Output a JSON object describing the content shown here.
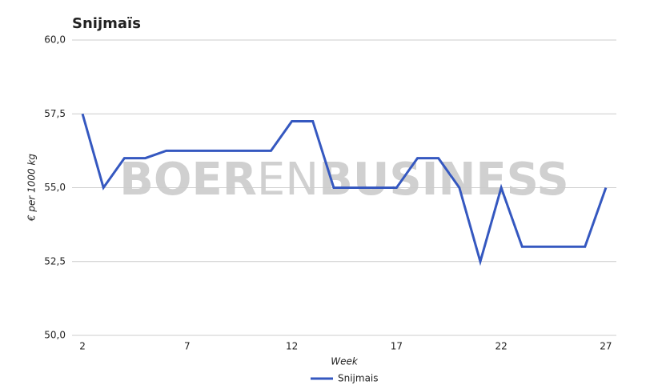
{
  "chart_data": {
    "type": "line",
    "title": "Snijmaïs",
    "watermark": [
      "BOER",
      "EN",
      "BUSINESS"
    ],
    "x_label": "Week",
    "y_label": "€ per 1000 kg",
    "x": [
      2,
      3,
      4,
      5,
      6,
      7,
      8,
      9,
      10,
      11,
      12,
      13,
      14,
      15,
      16,
      17,
      18,
      19,
      20,
      21,
      22,
      23,
      24,
      25,
      26,
      27
    ],
    "series": [
      {
        "name": "Snijmais",
        "color": "#3558c0",
        "values": [
          57.5,
          55,
          56,
          56,
          56.25,
          56.25,
          56.25,
          56.25,
          56.25,
          56.25,
          57.25,
          57.25,
          55,
          55,
          55,
          55,
          56,
          56,
          55,
          52.5,
          55,
          53,
          53,
          53,
          53,
          55
        ]
      }
    ],
    "xlim": [
      1.5,
      27.5
    ],
    "xticks": [
      2,
      7,
      12,
      17,
      22,
      27
    ],
    "ylim": [
      50,
      60
    ],
    "yticks": [
      {
        "value": 50,
        "label": "50,0"
      },
      {
        "value": 52.5,
        "label": "52,5"
      },
      {
        "value": 55,
        "label": "55,0"
      },
      {
        "value": 57.5,
        "label": "57,5"
      },
      {
        "value": 60,
        "label": "60,0"
      }
    ],
    "grid": true,
    "legend": "bottom"
  }
}
